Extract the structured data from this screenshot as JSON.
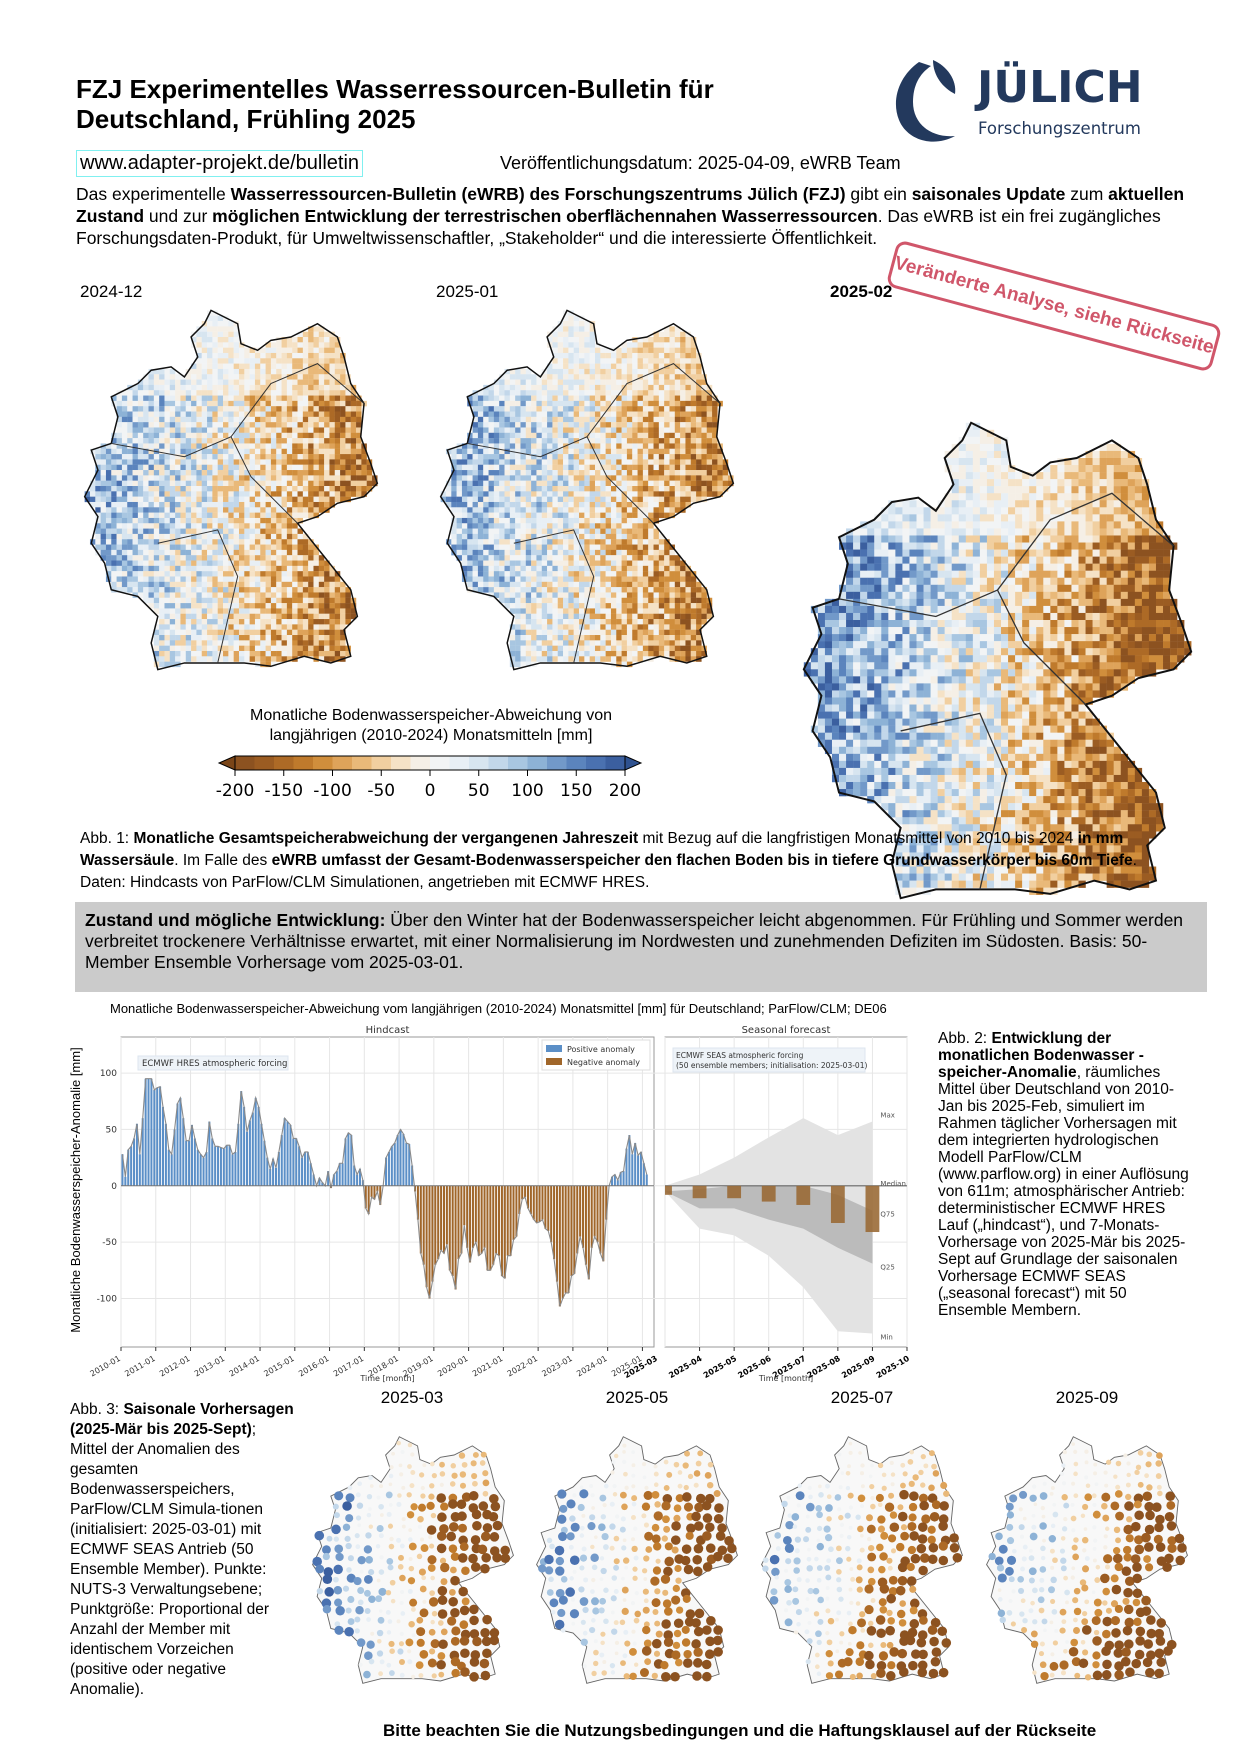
{
  "header": {
    "title_line1": "FZJ Experimentelles Wasserressourcen-Bulletin für",
    "title_line2": "Deutschland, Frühling 2025",
    "logo_text": "JÜLICH",
    "logo_subtext": "Forschungszentrum",
    "url": "www.adapter-projekt.de/bulletin",
    "publication": "Veröffentlichungsdatum: 2025-04-09, eWRB Team"
  },
  "intro": [
    {
      "t": "Das experimentelle ",
      "b": false
    },
    {
      "t": "Wasserressourcen-Bulletin (eWRB) des Forschungszentrums Jülich (FZJ)",
      "b": true
    },
    {
      "t": " gibt ein ",
      "b": false
    },
    {
      "t": "saisonales Update",
      "b": true
    },
    {
      "t": " zum ",
      "b": false
    },
    {
      "t": "aktuellen Zustand",
      "b": true
    },
    {
      "t": " und zur ",
      "b": false
    },
    {
      "t": "möglichen Entwicklung der terrestrischen oberflächennahen Wasserressourcen",
      "b": true
    },
    {
      "t": ". Das eWRB ist ein frei zugängliches Forschungsdaten-Produkt, für Umweltwissenschaftler, „Stakeholder“ und die interessierte Öffentlichkeit.",
      "b": false
    }
  ],
  "top_maps": [
    {
      "label": "2024-12",
      "bold": false
    },
    {
      "label": "2025-01",
      "bold": false
    },
    {
      "label": "2025-02",
      "bold": true
    }
  ],
  "stamp": "Veränderte Analyse, siehe Rückseite",
  "colorbar": {
    "title_line1": "Monatliche Bodenwasserspeicher-Abweichung von",
    "title_line2": "langjährigen (2010-2024) Monatsmitteln [mm]",
    "ticks": [
      "-200",
      "-150",
      "-100",
      "-50",
      "0",
      "50",
      "100",
      "150",
      "200"
    ],
    "range": [
      -200,
      200
    ],
    "colors": [
      "#8c5220",
      "#9b5c22",
      "#ad6a26",
      "#bf7a2c",
      "#d08e3c",
      "#dea35a",
      "#e9b979",
      "#f1cfa0",
      "#f5e2c6",
      "#f5efe6",
      "#f2f4f5",
      "#e8eff5",
      "#d7e5f0",
      "#c2d7ea",
      "#a8c6e1",
      "#8db2d6",
      "#7299c9",
      "#5b84bd",
      "#4a71b0",
      "#3b5f9f"
    ],
    "under_color": "#7a4518",
    "over_color": "#2f5290"
  },
  "caption1": [
    {
      "t": "Abb. 1: ",
      "b": false
    },
    {
      "t": "Monatliche Gesamtspeicherabweichung der vergangenen Jahreszeit",
      "b": true
    },
    {
      "t": " mit Bezug auf die langfristigen Monatsmittel von 2010 bis 2024 ",
      "b": false
    },
    {
      "t": "in mm Wassersäule",
      "b": true
    },
    {
      "t": ". Im Falle des ",
      "b": false
    },
    {
      "t": "eWRB umfasst der Gesamt-Bodenwasserspeicher den flachen Boden bis in tiefere Grundwasserkörper bis 60m Tiefe",
      "b": true
    },
    {
      "t": ". Daten: Hindcasts von ParFlow/CLM Simulationen, angetrieben mit ECMWF HRES.",
      "b": false
    }
  ],
  "summary": [
    {
      "t": "Zustand und mögliche Entwicklung:",
      "b": true
    },
    {
      "t": " Über den Winter hat der Bodenwasserspeicher leicht abgenommen. Für Frühling und Sommer werden verbreitet trockenere Verhältnisse erwartet, mit einer Normalisierung im Nordwesten und zunehmenden Defiziten im Südosten. Basis: 50-Member Ensemble Vorhersage vom 2025-03-01.",
      "b": false
    }
  ],
  "chart_data": {
    "type": "bar",
    "title": "Monatliche Bodenwasserspeicher-Abweichung vom langjährigen (2010-2024) Monatsmittel [mm] für Deutschland; ParFlow/CLM; DE06",
    "ylabel": "Monatliche Bodenwasserspeicher-Anomalie [mm]",
    "xlabel": "Time [month]",
    "ylim": [
      -143,
      132
    ],
    "yticks": [
      "-100",
      "-50",
      "0",
      "50",
      "100"
    ],
    "grid": true,
    "colors": {
      "positive": "#5b8fc7",
      "negative": "#a0662a",
      "line": "#8a8a8a",
      "band_outer": "#e3e3e3",
      "band_inner": "#b4b4b4",
      "forecast_bar": "#9a6a36"
    },
    "hindcast": {
      "panel_title": "Hindcast",
      "annotation": "ECMWF HRES atmospheric forcing",
      "legend": [
        "Positive anomaly",
        "Negative anomaly"
      ],
      "legend_position": "top-right",
      "start": "2010-01",
      "xticks": [
        "2010-01",
        "2011-01",
        "2012-01",
        "2013-01",
        "2014-01",
        "2015-01",
        "2016-01",
        "2017-01",
        "2018-01",
        "2019-01",
        "2020-01",
        "2021-01",
        "2022-01",
        "2023-01",
        "2024-01",
        "2025-01"
      ],
      "end_tick": "2025-03",
      "values": [
        28,
        8,
        32,
        35,
        42,
        55,
        28,
        60,
        95,
        95,
        95,
        85,
        87,
        88,
        70,
        55,
        32,
        28,
        50,
        73,
        78,
        60,
        40,
        40,
        54,
        42,
        32,
        28,
        25,
        30,
        57,
        42,
        35,
        35,
        34,
        33,
        36,
        36,
        28,
        30,
        55,
        84,
        70,
        48,
        58,
        65,
        78,
        70,
        55,
        40,
        25,
        15,
        24,
        16,
        30,
        45,
        60,
        57,
        54,
        42,
        42,
        35,
        25,
        30,
        30,
        20,
        10,
        0,
        7,
        3,
        0,
        13,
        -2,
        10,
        13,
        20,
        20,
        42,
        47,
        45,
        18,
        10,
        15,
        5,
        -20,
        -25,
        -10,
        -12,
        -5,
        -17,
        0,
        25,
        30,
        35,
        38,
        45,
        50,
        46,
        38,
        37,
        18,
        -5,
        -30,
        -60,
        -70,
        -90,
        -100,
        -85,
        -70,
        -65,
        -57,
        -60,
        -52,
        -75,
        -80,
        -92,
        -65,
        -60,
        -35,
        -55,
        -68,
        -55,
        -50,
        -62,
        -60,
        -55,
        -75,
        -75,
        -70,
        -60,
        -62,
        -80,
        -82,
        -62,
        -62,
        -48,
        -45,
        -25,
        -12,
        -10,
        -20,
        -25,
        -30,
        -33,
        -32,
        -30,
        -38,
        -40,
        -50,
        -65,
        -85,
        -107,
        -100,
        -95,
        -95,
        -80,
        -78,
        -60,
        -45,
        -55,
        -70,
        -83,
        -55,
        -45,
        -50,
        -60,
        -67,
        -30,
        0,
        8,
        10,
        5,
        12,
        13,
        33,
        45,
        28,
        38,
        27,
        30,
        20,
        10
      ]
    },
    "forecast": {
      "panel_title": "Seasonal forecast",
      "annotation_line1": "ECMWF SEAS atmospheric forcing",
      "annotation_line2": "(50 ensemble members; initialisation: 2025-03-01)",
      "xticks": [
        "2025-03",
        "2025-04",
        "2025-05",
        "2025-06",
        "2025-07",
        "2025-08",
        "2025-09",
        "2025-10"
      ],
      "months": [
        "2025-03",
        "2025-04",
        "2025-05",
        "2025-06",
        "2025-07",
        "2025-08",
        "2025-09"
      ],
      "bars": [
        -8,
        -11,
        -11,
        -14,
        -17,
        -33,
        -41
      ],
      "max": [
        0,
        10,
        25,
        43,
        60,
        45,
        57
      ],
      "q75": [
        -5,
        -3,
        0,
        0,
        0,
        -8,
        -22
      ],
      "q25": [
        -5,
        -20,
        -20,
        -30,
        -38,
        -55,
        -69
      ],
      "min": [
        -5,
        -38,
        -44,
        -62,
        -90,
        -129,
        -131
      ],
      "median": 0,
      "band_labels": [
        "Max",
        "Median",
        "Q75",
        "Q25",
        "Min"
      ]
    }
  },
  "caption2": [
    {
      "t": "Abb. 2: ",
      "b": false
    },
    {
      "t": "Entwicklung der monatlichen Bodenwasser -speicher-Anomalie",
      "b": true
    },
    {
      "t": ", räumliches Mittel über Deutschland von 2010-Jan bis 2025-Feb, simuliert im Rahmen täglicher Vorhersagen mit dem integrierten hydrologischen Modell ParFlow/CLM (www.parflow.org) in einer Auflösung von 611m; atmosphärischer Antrieb: deterministischer ECMWF HRES Lauf („hindcast“), und 7-Monats-Vorhersage von 2025-Mär bis 2025-Sept auf Grundlage der saisonalen Vorhersage ECMWF SEAS („seasonal forecast“) mit 50 Ensemble Membern.",
      "b": false
    }
  ],
  "caption3": [
    {
      "t": "Abb. 3: ",
      "b": false
    },
    {
      "t": "Saisonale Vorhersagen (2025-Mär bis 2025-Sept)",
      "b": true
    },
    {
      "t": "; Mittel der Anomalien des gesamten Bodenwasserspeichers, ParFlow/CLM Simula-tionen (initialisiert: 2025-03-01) mit ECMWF SEAS Antrieb (50 Ensemble Member). Punkte: NUTS-3 Verwaltungsebene; Punktgröße: Proportional der Anzahl der Member mit identischem Vorzeichen (positive oder negative Anomalie).",
      "b": false
    }
  ],
  "bottom_maps": [
    {
      "label": "2025-03"
    },
    {
      "label": "2025-05"
    },
    {
      "label": "2025-07"
    },
    {
      "label": "2025-09"
    }
  ],
  "footer": "Bitte beachten Sie die Nutzungsbedingungen und die Haftungsklausel auf der Rückseite",
  "brand_color": "#23395d"
}
